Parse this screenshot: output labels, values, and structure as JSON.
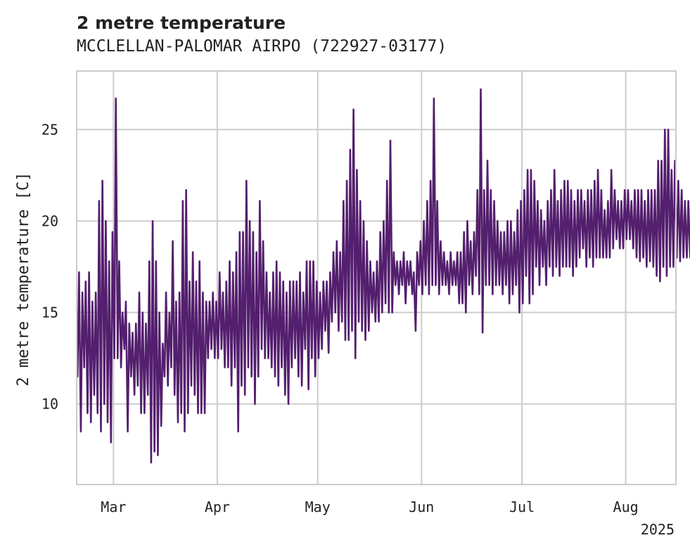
{
  "chart_data": {
    "type": "line",
    "title": "2 metre temperature",
    "subtitle": "MCCLELLAN-PALOMAR AIRPO (722927-03177)",
    "ylabel": "2 metre temperature [C]",
    "xlabel": "",
    "x_range": [
      "2025-02-18",
      "2025-08-16"
    ],
    "ylim": [
      5.6,
      28.2
    ],
    "y_ticks": [
      10,
      15,
      20,
      25
    ],
    "x_ticks": [
      {
        "date": "2025-03-01",
        "label": "Mar"
      },
      {
        "date": "2025-04-01",
        "label": "Apr"
      },
      {
        "date": "2025-05-01",
        "label": "May"
      },
      {
        "date": "2025-06-01",
        "label": "Jun"
      },
      {
        "date": "2025-07-01",
        "label": "Jul"
      },
      {
        "date": "2025-08-01",
        "label": "Aug"
      }
    ],
    "year_label": "2025",
    "grid": true,
    "series": [
      {
        "color": "#541f6e",
        "x_start": "2025-02-18",
        "step_days": 1,
        "daily_min": [
          11.5,
          8.5,
          12.0,
          9.5,
          9.0,
          10.5,
          9.5,
          8.5,
          10.0,
          9.0,
          7.9,
          12.5,
          12.5,
          12.0,
          13.0,
          8.5,
          11.5,
          10.5,
          11.0,
          9.5,
          9.5,
          10.5,
          6.8,
          7.4,
          7.2,
          8.8,
          11.5,
          11.0,
          12.0,
          10.5,
          9.0,
          9.5,
          8.5,
          9.5,
          11.0,
          10.5,
          9.5,
          9.5,
          9.5,
          12.5,
          13.0,
          12.5,
          12.5,
          13.0,
          12.0,
          12.0,
          11.0,
          12.0,
          8.5,
          11.0,
          10.5,
          12.0,
          11.5,
          10.0,
          11.5,
          13.0,
          12.5,
          12.5,
          12.0,
          11.5,
          11.0,
          12.0,
          10.5,
          10.0,
          12.0,
          12.5,
          11.5,
          11.0,
          13.0,
          10.8,
          12.5,
          11.5,
          12.5,
          13.0,
          14.0,
          12.8,
          14.5,
          15.0,
          14.0,
          14.5,
          13.5,
          13.5,
          14.0,
          12.5,
          14.5,
          14.0,
          13.5,
          14.0,
          15.0,
          14.5,
          14.5,
          15.0,
          15.5,
          15.0,
          15.0,
          16.5,
          16.0,
          16.5,
          15.5,
          16.5,
          16.0,
          14.0,
          16.5,
          16.0,
          16.5,
          16.0,
          16.5,
          16.5,
          16.0,
          16.5,
          16.5,
          16.0,
          16.5,
          16.5,
          15.5,
          15.5,
          15.0,
          16.5,
          16.0,
          17.0,
          16.0,
          13.9,
          16.5,
          16.5,
          16.0,
          16.5,
          16.5,
          16.0,
          16.5,
          15.5,
          16.0,
          16.5,
          15.0,
          15.5,
          17.0,
          15.5,
          16.0,
          17.5,
          16.5,
          17.5,
          16.5,
          17.5,
          17.0,
          17.5,
          17.0,
          17.5,
          17.5,
          17.5,
          17.0,
          17.5,
          18.0,
          18.5,
          17.5,
          18.0,
          17.5,
          18.0,
          18.0,
          18.0,
          18.0,
          18.0,
          18.5,
          19.0,
          18.5,
          18.5,
          19.0,
          19.0,
          18.5,
          18.0,
          17.8,
          18.0,
          17.5,
          17.8,
          17.5,
          17.0,
          16.7,
          17.5,
          17.0,
          17.5,
          17.5,
          18.0,
          17.8,
          18.0,
          18.0,
          18.0,
          18.5
        ],
        "daily_max": [
          17.2,
          16.1,
          16.7,
          17.2,
          15.6,
          16.1,
          21.1,
          22.2,
          20.0,
          17.8,
          19.4,
          26.7,
          17.8,
          15.0,
          15.6,
          14.4,
          13.9,
          14.4,
          16.1,
          15.0,
          14.4,
          17.8,
          20.0,
          17.8,
          15.0,
          13.3,
          16.1,
          15.0,
          18.9,
          15.6,
          16.1,
          21.1,
          21.7,
          16.7,
          18.3,
          16.7,
          17.8,
          16.1,
          15.6,
          15.6,
          16.1,
          15.6,
          17.2,
          16.1,
          16.7,
          17.8,
          17.2,
          18.3,
          19.4,
          19.4,
          22.2,
          20.0,
          19.4,
          18.3,
          21.1,
          18.9,
          17.2,
          16.1,
          17.2,
          17.8,
          17.2,
          16.7,
          16.1,
          16.7,
          16.7,
          16.7,
          17.2,
          16.1,
          17.8,
          17.8,
          17.8,
          16.7,
          16.1,
          16.7,
          16.7,
          17.2,
          18.3,
          18.9,
          18.3,
          21.1,
          22.2,
          23.9,
          26.1,
          22.8,
          21.1,
          20.0,
          18.9,
          17.8,
          17.2,
          17.8,
          19.4,
          20.0,
          22.2,
          24.4,
          18.3,
          17.8,
          17.8,
          18.3,
          17.8,
          17.8,
          17.2,
          18.3,
          18.9,
          20.0,
          21.1,
          22.2,
          26.7,
          21.1,
          18.9,
          18.3,
          17.8,
          18.3,
          17.8,
          18.3,
          18.3,
          19.4,
          20.0,
          18.9,
          19.4,
          21.7,
          27.2,
          21.7,
          23.3,
          21.7,
          21.1,
          20.0,
          19.4,
          19.4,
          20.0,
          20.0,
          19.4,
          20.6,
          21.1,
          21.7,
          22.8,
          22.8,
          22.2,
          21.1,
          20.6,
          20.0,
          21.1,
          21.7,
          22.8,
          21.1,
          21.7,
          22.2,
          22.2,
          21.7,
          21.1,
          21.7,
          21.7,
          21.1,
          21.7,
          21.7,
          22.2,
          22.8,
          21.7,
          20.6,
          21.1,
          22.8,
          21.7,
          21.1,
          21.1,
          21.7,
          21.7,
          21.1,
          21.7,
          21.7,
          21.7,
          21.1,
          21.7,
          21.7,
          21.7,
          23.3,
          23.3,
          25.0,
          25.0,
          22.8,
          23.3,
          22.2,
          21.7,
          21.1,
          21.1,
          21.7,
          20.6
        ]
      }
    ]
  }
}
